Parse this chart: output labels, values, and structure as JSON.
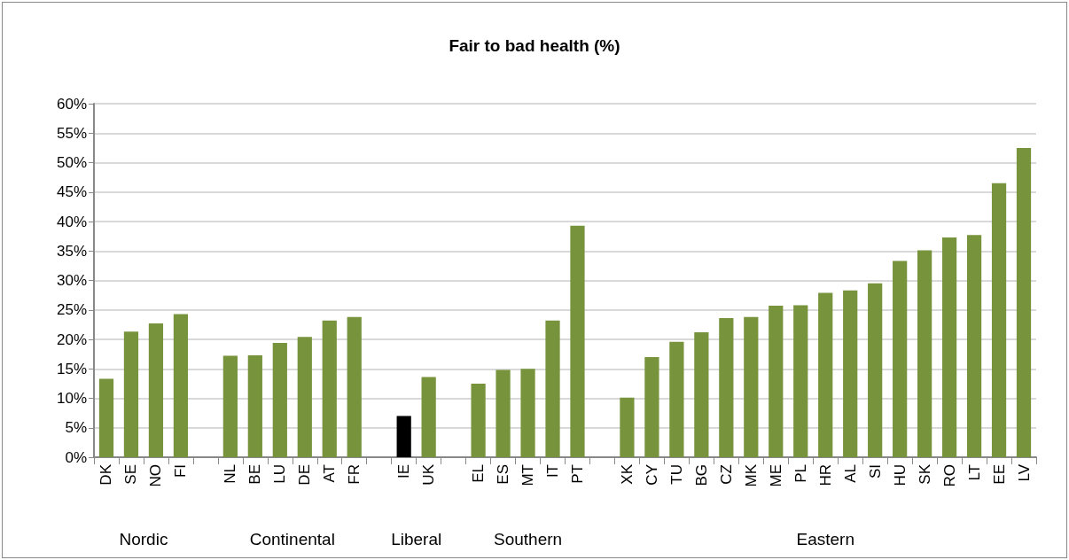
{
  "chart_data": {
    "type": "bar",
    "title": "Fair to bad health (%)",
    "categories": [
      "DK",
      "SE",
      "NO",
      "FI",
      null,
      "NL",
      "BE",
      "LU",
      "DE",
      "AT",
      "FR",
      null,
      "IE",
      "UK",
      null,
      "EL",
      "ES",
      "MT",
      "IT",
      "PT",
      null,
      "XK",
      "CY",
      "TU",
      "BG",
      "CZ",
      "MK",
      "ME",
      "PL",
      "HR",
      "AL",
      "SI",
      "HU",
      "SK",
      "RO",
      "LT",
      "EE",
      "LV"
    ],
    "values": [
      13.3,
      21.3,
      22.7,
      24.3,
      null,
      17.2,
      17.3,
      19.4,
      20.4,
      23.2,
      23.8,
      null,
      7.0,
      13.6,
      null,
      12.5,
      14.8,
      15.0,
      23.2,
      39.3,
      null,
      10.1,
      17.0,
      19.6,
      21.2,
      23.6,
      23.8,
      25.7,
      25.8,
      27.9,
      28.3,
      29.5,
      33.3,
      35.1,
      37.3,
      37.7,
      46.5,
      52.5
    ],
    "colors": [
      "#77933c",
      "#77933c",
      "#77933c",
      "#77933c",
      null,
      "#77933c",
      "#77933c",
      "#77933c",
      "#77933c",
      "#77933c",
      "#77933c",
      null,
      "#000000",
      "#77933c",
      null,
      "#77933c",
      "#77933c",
      "#77933c",
      "#77933c",
      "#77933c",
      null,
      "#77933c",
      "#77933c",
      "#77933c",
      "#77933c",
      "#77933c",
      "#77933c",
      "#77933c",
      "#77933c",
      "#77933c",
      "#77933c",
      "#77933c",
      "#77933c",
      "#77933c",
      "#77933c",
      "#77933c",
      "#77933c",
      "#77933c"
    ],
    "ylim": [
      0,
      60
    ],
    "yticks": [
      {
        "value": 0,
        "label": "0%"
      },
      {
        "value": 5,
        "label": "5%"
      },
      {
        "value": 10,
        "label": "10%"
      },
      {
        "value": 15,
        "label": "15%"
      },
      {
        "value": 20,
        "label": "20%"
      },
      {
        "value": 25,
        "label": "25%"
      },
      {
        "value": 30,
        "label": "30%"
      },
      {
        "value": 35,
        "label": "35%"
      },
      {
        "value": 40,
        "label": "40%"
      },
      {
        "value": 45,
        "label": "45%"
      },
      {
        "value": 50,
        "label": "50%"
      },
      {
        "value": 55,
        "label": "55%"
      },
      {
        "value": 60,
        "label": "60%"
      }
    ],
    "grid": "y",
    "annotations": [
      "Nordic",
      "Continental",
      "Liberal",
      "Southern",
      "Eastern"
    ]
  }
}
